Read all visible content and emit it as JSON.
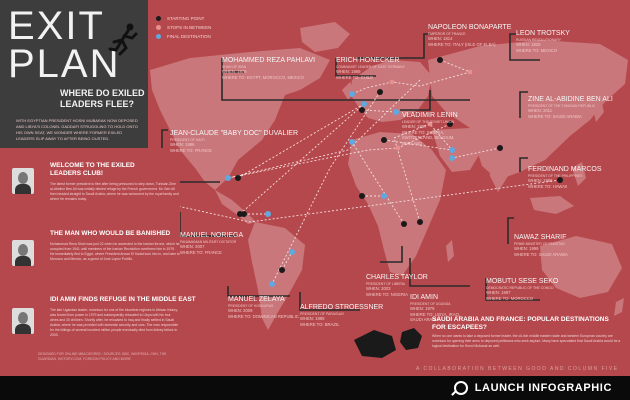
{
  "title": {
    "line1": "EXIT",
    "line2": "PLAN",
    "subtitle": "WHERE DO EXILED LEADERS FLEE?"
  },
  "intro": "WITH EGYPTIAN PRESIDENT HOSNI MUBARAK NOW DEPOSED AND LIBYA'S COLONEL GADDAFI STRUGGLING TO HOLD ONTO HIS OWN SEAT, WE WONDER WHERE FORMER EXILED LEADERS SLIP AWAY TO AFTER BEING OUSTED.",
  "legend": [
    {
      "label": "STARTING POINT",
      "color": "#1a1a1a"
    },
    {
      "label": "STOPS IN BETWEEN",
      "color": "#e89090"
    },
    {
      "label": "FINAL DESTINATION",
      "color": "#5fa8e0"
    }
  ],
  "left_sections": [
    {
      "title": "WELCOME TO THE EXILED LEADERS CLUB!",
      "body": "The latest former president to flee after being pressured to step down, Tunisian Zine al-Abidine Ben Ali was initially denied refuge by the French government. Mr. Ben Ali then headed straight to Saudi Arabia, where he was welcomed by the royal family and where he remains today."
    },
    {
      "title": "THE MAN WHO WOULD BE BANISHED",
      "body": "Mohammad Reza Shah was just 22 when he ascended to the Iranian throne, which he occupied from 1941 until members of the Iranian Revolution overthrew him in 1979. He immediately fled to Egypt, where President Anwar El Sadat took him in, and later to Morocco and Mexico, as a guest of Jose Lopez Portillo."
    },
    {
      "title": "IDI AMIN FINDS REFUGE IN THE MIDDLE EAST",
      "body": "The late Ugandan leader, notorious for one of the bloodiest regimes in African history, was forced from power in 1979 and subsequently relocated to Libya with his four wives and 30 children. Shortly after, he relocated to Iraq and finally settled in Saudi Arabia, where he was provided with domestic security and cars. The man responsible for the killings of several hundred million people eventually died from kidney failure in 2003."
    }
  ],
  "credits": "DESIGNED FOR ONLINE MBA DEGREE / SOURCES: BBC, WIKIPEDIA, CNN, THE GUARDIAN, HISTORY.COM, FOREIGN POLICY AND MORE",
  "leaders": [
    {
      "name": "MOHAMMED REZA PAHLAVI",
      "role": "SHAH OF IRAN",
      "when": "WHEN: 1979",
      "where": "WHERE TO: EGYPT, MOROCCO, MEXICO"
    },
    {
      "name": "ERICH HONECKER",
      "role": "COMMUNIST LEADER OF EAST GERMANY",
      "when": "WHEN: 1989",
      "where": "WHERE TO: CHILE"
    },
    {
      "name": "NAPOLEON BONAPARTE",
      "role": "EMPEROR OF FRANCE",
      "when": "WHEN: 1814",
      "where": "WHERE TO: ITALY (ISLE OF ELBA)"
    },
    {
      "name": "LEON TROTSKY",
      "role": "RUSSIAN REVOLUTIONARY",
      "when": "WHEN: 1929",
      "where": "WHERE TO: MEXICO"
    },
    {
      "name": "VLADIMIR LENIN",
      "role": "LEADER OF THE SOVIET UNION",
      "when": "WHEN: 1897",
      "where": "WHERE TO: SIBERIA, SWITZERLAND, BELGIUM, ENGLAND"
    },
    {
      "name": "ZINE AL-ABIDINE BEN ALI",
      "role": "PRESIDENT OF THE TUNISIAN REPUBLIC",
      "when": "WHEN: 2011",
      "where": "WHERE TO: SAUDI ARABIA"
    },
    {
      "name": "JEAN-CLAUDE \"BABY DOC\" DUVALIER",
      "role": "PRESIDENT OF HAITI",
      "when": "WHEN: 1986",
      "where": "WHERE TO: FRANCE"
    },
    {
      "name": "FERDINAND MARCOS",
      "role": "PRESIDENT OF THE PHILIPPINES",
      "when": "WHEN: 1986",
      "where": "WHERE TO: HAWAII"
    },
    {
      "name": "MANUEL NORIEGA",
      "role": "PANAMANIAN MILITARY DICTATOR",
      "when": "WHEN: 2007",
      "where": "WHERE TO: FRANCE"
    },
    {
      "name": "NAWAZ SHARIF",
      "role": "PRIME MINISTER OF PAKISTAN",
      "when": "WHEN: 1999",
      "where": "WHERE TO: SAUDI ARABIA"
    },
    {
      "name": "IDI AMIN",
      "role": "PRESIDENT OF UGANDA",
      "when": "WHEN: 1979",
      "where": "WHERE TO: LIBYA, IRAQ, SAUDI ARABIA"
    },
    {
      "name": "CHARLES TAYLOR",
      "role": "PRESIDENT OF LIBERIA",
      "when": "WHEN: 2003",
      "where": "WHERE TO: NIGERIA"
    },
    {
      "name": "MANUEL ZELAYA",
      "role": "PRESIDENT OF HONDURAS",
      "when": "WHEN: 2009",
      "where": "WHERE TO: DOMINICAN REPUBLIC"
    },
    {
      "name": "ALFREDO STROESSNER",
      "role": "PRESIDENT OF PARAGUAY",
      "when": "WHEN: 1989",
      "where": "WHERE TO: BRAZIL"
    },
    {
      "name": "MOBUTU SESE SEKO",
      "role": "DEMOCRATIC REPUBLIC OF THE CONGO",
      "when": "WHEN: 1997",
      "where": "WHERE TO: MOROCCO"
    }
  ],
  "bottom": {
    "question": "SAUDI ARABIA AND FRANCE: POPULAR DESTINATIONS FOR ESCAPEES?",
    "body": "When no one wants to take a deposed former leader, the oil-rich middle eastern state and western European country are notorious for opening their arms to deposed politicians who seek asylum. Many have speculated that Saudi Arabia would be a logical destination for Hosni Mubarak as well.",
    "collab": "A COLLABORATION BETWEEN GOOD AND COLUMN FIVE"
  },
  "launch": {
    "label": "LAUNCH INFOGRAPHIC",
    "icon": "magnifier-icon"
  },
  "colors": {
    "background": "#b5484d",
    "land": "#c9777b",
    "panel": "#3d3d3d",
    "route": "#f5e0e0",
    "destination": "#5fa8e0"
  }
}
